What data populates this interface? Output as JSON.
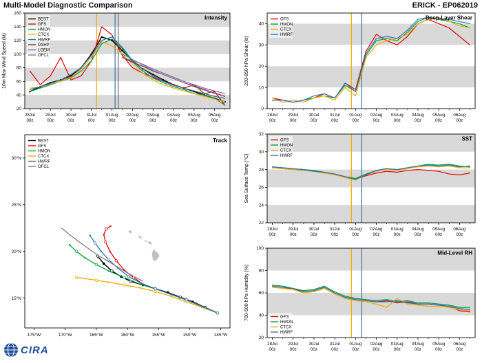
{
  "header": {
    "title": "Multi-Model Diagnostic Comparison",
    "storm": "ERICK - EP062019"
  },
  "logo": {
    "text": "CIRA"
  },
  "colors": {
    "BEST": "#000000",
    "GFS": "#e60000",
    "HMON": "#00a03c",
    "CTCX": "#f0ab00",
    "HWRF": "#2f74b5",
    "DSHP": "#7a2e2e",
    "LGEM": "#8a5ac2",
    "OFCL": "#7f7f7f",
    "band": "#d9d9d9",
    "island": "#c0c0c0"
  },
  "time_axis": {
    "x": [
      0,
      0.5,
      1,
      1.5,
      2,
      2.5,
      3,
      3.5,
      4,
      4.5,
      5,
      5.5,
      6,
      6.5,
      7,
      7.5,
      8,
      8.5,
      9,
      9.5
    ],
    "ticks": [
      0,
      1,
      2,
      3,
      4,
      5,
      6,
      7,
      8,
      9
    ],
    "day_labels": [
      "28Jul",
      "29Jul",
      "30Jul",
      "31Jul",
      "01Aug",
      "02Aug",
      "03Aug",
      "04Aug",
      "05Aug",
      "06Aug"
    ],
    "hour_label": "00z",
    "xlim": [
      -0.25,
      9.75
    ]
  },
  "chart_data": [
    {
      "id": "intensity",
      "type": "line",
      "title": "Intensity",
      "ylabel": "10m Max Wind Speed (kt)",
      "ylim": [
        20,
        160
      ],
      "yticks": [
        20,
        40,
        60,
        80,
        100,
        120,
        140,
        160
      ],
      "bands": [
        [
          20,
          40
        ],
        [
          60,
          80
        ],
        [
          100,
          120
        ],
        [
          140,
          160
        ]
      ],
      "vlines": [
        {
          "x": 3.25,
          "color": "#f0ab00"
        },
        {
          "x": 4.15,
          "color": "#2f74b5"
        },
        {
          "x": 4.3,
          "color": "#666666"
        }
      ],
      "legend_pos": "tl",
      "series": [
        {
          "name": "BEST",
          "y": [
            45,
            52,
            58,
            62,
            68,
            80,
            100,
            125,
            120,
            105,
            90,
            78,
            70,
            62,
            55,
            50,
            45,
            40,
            35,
            30
          ]
        },
        {
          "name": "GFS",
          "y": [
            75,
            55,
            68,
            95,
            62,
            68,
            90,
            140,
            128,
            98,
            80,
            72,
            66,
            60,
            55,
            50,
            55,
            42,
            45,
            25
          ]
        },
        {
          "name": "HMON",
          "y": [
            45,
            50,
            55,
            60,
            65,
            75,
            90,
            115,
            122,
            108,
            88,
            75,
            65,
            58,
            52,
            48,
            42,
            40,
            35,
            25
          ]
        },
        {
          "name": "CTCX",
          "y": [
            50,
            52,
            56,
            60,
            66,
            78,
            95,
            118,
            112,
            100,
            85,
            72,
            62,
            55,
            50,
            46,
            42,
            38,
            34,
            30
          ]
        },
        {
          "name": "HWRF",
          "y": [
            48,
            52,
            57,
            62,
            70,
            80,
            98,
            120,
            125,
            110,
            90,
            78,
            68,
            60,
            54,
            50,
            46,
            42,
            38,
            35
          ]
        },
        {
          "name": "DSHP",
          "x": [
            4.5,
            5,
            5.5,
            6,
            6.5,
            7,
            7.5,
            8,
            8.5,
            9,
            9.5
          ],
          "y": [
            95,
            88,
            82,
            75,
            70,
            64,
            58,
            53,
            48,
            43,
            38
          ]
        },
        {
          "name": "LGEM",
          "x": [
            4.5,
            5,
            5.5,
            6,
            6.5,
            7,
            7.5,
            8,
            8.5,
            9,
            9.5
          ],
          "y": [
            95,
            90,
            85,
            78,
            72,
            66,
            60,
            55,
            50,
            46,
            42
          ]
        },
        {
          "name": "OFCL",
          "x": [
            4.5,
            5,
            5.5,
            6,
            6.5,
            7,
            7.5,
            8,
            8.5,
            9
          ],
          "y": [
            100,
            92,
            84,
            76,
            70,
            64,
            58,
            52,
            47,
            42
          ]
        }
      ]
    },
    {
      "id": "shear",
      "type": "line",
      "title": "Deep-Layer Shear",
      "ylabel": "200-850 hPa Shear (kt)",
      "ylim": [
        0,
        45
      ],
      "yticks": [
        0,
        10,
        20,
        30,
        40
      ],
      "bands": [
        [
          10,
          20
        ],
        [
          30,
          40
        ]
      ],
      "vlines": [
        {
          "x": 3.8,
          "color": "#f0ab00"
        },
        {
          "x": 4.3,
          "color": "#2f74b5"
        }
      ],
      "legend_pos": "tl",
      "series": [
        {
          "name": "GFS",
          "y": [
            5,
            4,
            3,
            4,
            5,
            7,
            5,
            12,
            9,
            27,
            35,
            32,
            30,
            34,
            40,
            42,
            40,
            38,
            34,
            30
          ]
        },
        {
          "name": "HMON",
          "y": [
            4,
            4,
            3,
            4,
            5,
            6,
            5,
            11,
            8,
            25,
            32,
            33,
            32,
            36,
            41,
            43,
            42,
            41,
            40,
            38
          ]
        },
        {
          "name": "CTCX",
          "y": [
            5,
            3,
            4,
            3,
            5,
            6,
            4,
            10,
            6,
            24,
            30,
            32,
            33,
            35,
            40,
            42,
            43,
            41,
            39,
            38
          ]
        },
        {
          "name": "HWRF",
          "y": [
            4,
            4,
            3,
            4,
            6,
            7,
            5,
            12,
            8,
            26,
            33,
            34,
            33,
            37,
            42,
            43,
            42,
            42,
            41,
            40
          ]
        }
      ]
    },
    {
      "id": "sst",
      "type": "line",
      "title": "SST",
      "ylabel": "Sea Surface Temp (°C)",
      "ylim": [
        22,
        32
      ],
      "yticks": [
        22,
        24,
        26,
        28,
        30,
        32
      ],
      "bands": [
        [
          22,
          24
        ],
        [
          26,
          28
        ],
        [
          30,
          32
        ]
      ],
      "vlines": [
        {
          "x": 3.8,
          "color": "#f0ab00"
        },
        {
          "x": 4.3,
          "color": "#2f74b5"
        }
      ],
      "legend_pos": "tl",
      "series": [
        {
          "name": "GFS",
          "y": [
            28.2,
            28.1,
            28.0,
            27.9,
            27.8,
            27.6,
            27.5,
            27.1,
            26.9,
            27.3,
            27.6,
            27.8,
            27.7,
            27.9,
            28.0,
            27.9,
            27.8,
            27.5,
            27.4,
            27.6
          ]
        },
        {
          "name": "HMON",
          "y": [
            28.3,
            28.2,
            28.1,
            28.0,
            27.9,
            27.7,
            27.5,
            27.2,
            27.0,
            27.5,
            27.9,
            28.1,
            28.0,
            28.2,
            28.4,
            28.6,
            28.5,
            28.6,
            28.4,
            28.3
          ]
        },
        {
          "name": "CTCX",
          "y": [
            28.2,
            28.1,
            28.0,
            27.9,
            27.8,
            27.6,
            27.4,
            27.1,
            26.8,
            27.4,
            27.8,
            28.0,
            27.9,
            28.1,
            28.3,
            28.4,
            28.3,
            28.4,
            28.2,
            28.2
          ]
        },
        {
          "name": "HWRF",
          "y": [
            28.3,
            28.2,
            28.1,
            28.0,
            27.8,
            27.7,
            27.5,
            27.2,
            26.9,
            27.4,
            27.9,
            28.1,
            28.0,
            28.2,
            28.4,
            28.5,
            28.4,
            28.5,
            28.3,
            28.4
          ]
        }
      ]
    },
    {
      "id": "rh",
      "type": "line",
      "title": "Mid-Level RH",
      "ylabel": "700-500 hPa Humidity (%)",
      "ylim": [
        20,
        100
      ],
      "yticks": [
        20,
        40,
        60,
        80,
        100
      ],
      "bands": [
        [
          40,
          60
        ],
        [
          80,
          100
        ]
      ],
      "vlines": [
        {
          "x": 3.8,
          "color": "#f0ab00"
        },
        {
          "x": 4.3,
          "color": "#2f74b5"
        }
      ],
      "legend_pos": "bl",
      "series": [
        {
          "name": "GFS",
          "y": [
            66,
            65,
            63,
            61,
            62,
            65,
            60,
            56,
            54,
            53,
            52,
            53,
            51,
            52,
            50,
            50,
            49,
            48,
            44,
            43
          ]
        },
        {
          "name": "HMON",
          "y": [
            67,
            66,
            64,
            62,
            63,
            66,
            61,
            57,
            55,
            54,
            53,
            54,
            52,
            53,
            51,
            51,
            50,
            49,
            47,
            47
          ]
        },
        {
          "name": "CTCX",
          "y": [
            65,
            64,
            63,
            60,
            61,
            64,
            59,
            55,
            53,
            52,
            50,
            47,
            55,
            50,
            49,
            48,
            48,
            47,
            45,
            44
          ]
        },
        {
          "name": "HWRF",
          "y": [
            66,
            65,
            64,
            61,
            62,
            65,
            60,
            56,
            54,
            53,
            52,
            52,
            53,
            51,
            50,
            50,
            49,
            48,
            46,
            45
          ]
        }
      ]
    },
    {
      "id": "track",
      "type": "track",
      "title": "Track",
      "xlim": [
        176.5,
        143.5
      ],
      "ylim": [
        11.8,
        32.5
      ],
      "lon_tick_vals": [
        175,
        170,
        165,
        160,
        155,
        150,
        145
      ],
      "lon_tick_labels": [
        "175°W",
        "170°W",
        "165°W",
        "160°W",
        "155°W",
        "150°W",
        "145°W"
      ],
      "lat_tick_vals": [
        15,
        20,
        25,
        30
      ],
      "lat_tick_labels": [
        "15°N",
        "20°N",
        "25°N",
        "30°N"
      ],
      "islands": [
        [
          [
            155.9,
            19.1
          ],
          [
            155.5,
            18.95
          ],
          [
            154.85,
            19.5
          ],
          [
            155.0,
            19.75
          ],
          [
            155.8,
            20.25
          ],
          [
            156.05,
            19.75
          ]
        ],
        [
          [
            156.7,
            20.9
          ],
          [
            156.0,
            20.7
          ],
          [
            156.25,
            21.05
          ],
          [
            156.6,
            21.05
          ]
        ],
        [
          [
            157.3,
            21.2
          ],
          [
            156.75,
            21.15
          ],
          [
            157.0,
            21.0
          ]
        ],
        [
          [
            158.3,
            21.55
          ],
          [
            157.65,
            21.3
          ],
          [
            157.9,
            21.72
          ]
        ],
        [
          [
            159.8,
            22.05
          ],
          [
            159.3,
            21.9
          ],
          [
            159.35,
            22.25
          ],
          [
            159.75,
            22.25
          ]
        ]
      ],
      "legend_pos": "tl",
      "series": [
        {
          "name": "BEST",
          "pts": [
            [
              145.5,
              13.4
            ],
            [
              147.5,
              14.0
            ],
            [
              149.5,
              14.6
            ],
            [
              151.5,
              15.1
            ],
            [
              153.5,
              15.6
            ],
            [
              155.5,
              16.0
            ],
            [
              157.5,
              16.4
            ],
            [
              159.5,
              16.8
            ],
            [
              161,
              17.3
            ],
            [
              162.5,
              17.9
            ],
            [
              163.8,
              18.7
            ],
            [
              164.8,
              19.5
            ]
          ]
        },
        {
          "name": "GFS",
          "pts": [
            [
              145.5,
              13.4
            ],
            [
              148,
              14.1
            ],
            [
              150.5,
              14.8
            ],
            [
              153,
              15.4
            ],
            [
              155.5,
              16.0
            ],
            [
              157.5,
              16.5
            ],
            [
              159,
              17.2
            ],
            [
              160.5,
              18.0
            ],
            [
              161.8,
              19.0
            ],
            [
              162.8,
              20.0
            ],
            [
              163.5,
              21.0
            ],
            [
              163.8,
              21.8
            ],
            [
              163.4,
              22.4
            ],
            [
              162.7,
              22.7
            ]
          ]
        },
        {
          "name": "HMON",
          "pts": [
            [
              145.5,
              13.4
            ],
            [
              148,
              14.1
            ],
            [
              150.5,
              14.8
            ],
            [
              153,
              15.4
            ],
            [
              155.5,
              16.0
            ],
            [
              158,
              16.5
            ],
            [
              160.5,
              17.2
            ],
            [
              163,
              17.9
            ],
            [
              165,
              18.6
            ],
            [
              166.8,
              19.3
            ],
            [
              168.2,
              20.0
            ],
            [
              169.3,
              20.7
            ]
          ]
        },
        {
          "name": "CTCX",
          "pts": [
            [
              145.5,
              13.4
            ],
            [
              148,
              14.0
            ],
            [
              150.5,
              14.6
            ],
            [
              153,
              15.2
            ],
            [
              155.5,
              15.7
            ],
            [
              158,
              16.1
            ],
            [
              160.5,
              16.4
            ],
            [
              163,
              16.7
            ],
            [
              165,
              16.9
            ],
            [
              166.8,
              17.1
            ],
            [
              168.2,
              17.2
            ]
          ]
        },
        {
          "name": "HWRF",
          "pts": [
            [
              145.5,
              13.4
            ],
            [
              148,
              14.1
            ],
            [
              150.5,
              14.8
            ],
            [
              153,
              15.4
            ],
            [
              155.5,
              16.0
            ],
            [
              157.8,
              16.6
            ],
            [
              159.8,
              17.3
            ],
            [
              161.5,
              18.2
            ],
            [
              163,
              19.1
            ],
            [
              164.2,
              20.0
            ],
            [
              165.2,
              20.9
            ],
            [
              166,
              21.7
            ]
          ]
        },
        {
          "name": "OFCL",
          "pts": [
            [
              157.5,
              16.8
            ],
            [
              160,
              17.7
            ],
            [
              162.5,
              18.7
            ],
            [
              165,
              19.7
            ],
            [
              167.3,
              20.8
            ],
            [
              169.5,
              21.9
            ],
            [
              170.6,
              22.5
            ]
          ]
        }
      ]
    }
  ]
}
